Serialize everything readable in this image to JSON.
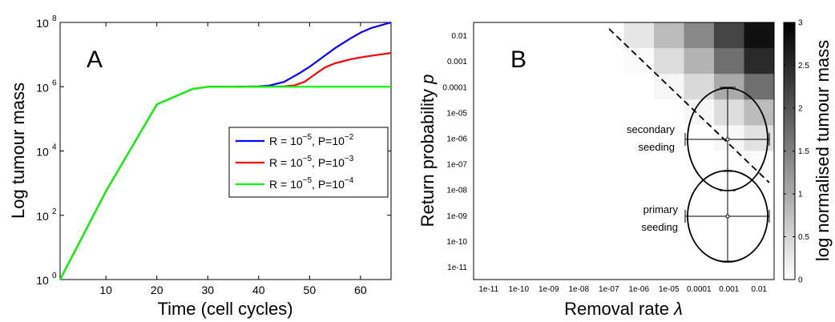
{
  "chart_data": [
    {
      "type": "line",
      "panel_label": "A",
      "xlabel": "Time (cell cycles)",
      "ylabel": "Log tumour mass",
      "xlim": [
        1,
        66
      ],
      "ylim_log10": [
        0,
        8
      ],
      "y_scale": "log",
      "x_ticks": [
        "10",
        "20",
        "30",
        "40",
        "50",
        "60"
      ],
      "y_ticks": [
        {
          "base": "10",
          "exp": "0"
        },
        {
          "base": "10",
          "exp": "2"
        },
        {
          "base": "10",
          "exp": "4"
        },
        {
          "base": "10",
          "exp": "6"
        },
        {
          "base": "10",
          "exp": "8"
        }
      ],
      "legend_position": "center-right",
      "series": [
        {
          "name": "R = 10^-5, P=10^-2",
          "label": {
            "a": "R = 10",
            "ae": "−5",
            "b": ", P=10",
            "be": "−2"
          },
          "color": "#0000ff",
          "x": [
            1,
            10,
            20,
            27,
            30,
            35,
            40,
            42,
            45,
            48,
            50,
            52,
            55,
            58,
            60,
            62,
            66
          ],
          "y_log10": [
            0,
            2.75,
            5.45,
            5.93,
            6.0,
            6.0,
            6.01,
            6.03,
            6.15,
            6.42,
            6.62,
            6.85,
            7.2,
            7.5,
            7.68,
            7.82,
            8.0
          ]
        },
        {
          "name": "R = 10^-5, P=10^-3",
          "label": {
            "a": "R = 10",
            "ae": "−5",
            "b": ", P=10",
            "be": "−3"
          },
          "color": "#ff0000",
          "x": [
            1,
            10,
            20,
            27,
            30,
            35,
            40,
            45,
            47,
            49,
            51,
            53,
            55,
            58,
            60,
            62,
            66
          ],
          "y_log10": [
            0,
            2.75,
            5.45,
            5.93,
            6.0,
            6.0,
            6.0,
            6.01,
            6.04,
            6.15,
            6.38,
            6.6,
            6.73,
            6.85,
            6.91,
            6.96,
            7.05
          ]
        },
        {
          "name": "R = 10^-5, P=10^-4",
          "label": {
            "a": "R = 10",
            "ae": "−5",
            "b": ", P=10",
            "be": "−4"
          },
          "color": "#00ff00",
          "x": [
            1,
            10,
            20,
            27,
            30,
            35,
            66
          ],
          "y_log10": [
            0,
            2.75,
            5.45,
            5.93,
            6.0,
            6.0,
            6.0
          ]
        }
      ]
    },
    {
      "type": "heatmap",
      "panel_label": "B",
      "xlabel_text": "Removal rate ",
      "xlabel_symbol": "λ",
      "ylabel_text": "Return probability ",
      "ylabel_symbol": "p",
      "x_ticks": [
        "1e-11",
        "1e-10",
        "1e-09",
        "1e-08",
        "1e-07",
        "1e-06",
        "1e-05",
        "0.0001",
        "0.001",
        "0.01"
      ],
      "y_ticks": [
        "0.01",
        "0.001",
        "0.0001",
        "1e-05",
        "1e-06",
        "1e-07",
        "1e-08",
        "1e-09",
        "1e-10",
        "1e-11"
      ],
      "colorbar": {
        "label": "log normalised tumour mass",
        "min": 0,
        "max": 3,
        "ticks": [
          "0",
          "0.5",
          "1",
          "1.5",
          "2",
          "2.5",
          "3"
        ],
        "colormap": "white-to-black"
      },
      "values": [
        [
          0,
          0,
          0,
          0,
          0,
          0.3,
          0.8,
          1.4,
          2.2,
          2.8
        ],
        [
          0,
          0,
          0,
          0,
          0,
          0.05,
          0.4,
          0.9,
          1.7,
          2.5
        ],
        [
          0,
          0,
          0,
          0,
          0,
          0,
          0.1,
          0.45,
          1.0,
          1.7
        ],
        [
          0,
          0,
          0,
          0,
          0,
          0,
          0,
          0.1,
          0.4,
          0.8
        ],
        [
          0,
          0,
          0,
          0,
          0,
          0,
          0,
          0,
          0.1,
          0.35
        ],
        [
          0,
          0,
          0,
          0,
          0,
          0,
          0,
          0,
          0,
          0.05
        ],
        [
          0,
          0,
          0,
          0,
          0,
          0,
          0,
          0,
          0,
          0
        ],
        [
          0,
          0,
          0,
          0,
          0,
          0,
          0,
          0,
          0,
          0
        ],
        [
          0,
          0,
          0,
          0,
          0,
          0,
          0,
          0,
          0,
          0
        ],
        [
          0,
          0,
          0,
          0,
          0,
          0,
          0,
          0,
          0,
          0
        ]
      ],
      "threshold_line": {
        "style": "dashed",
        "from": [
          "1e-07",
          "0.01"
        ],
        "to": [
          "0.01",
          "1e-08"
        ]
      },
      "annotations": [
        {
          "lines": [
            "secondary",
            "seeding"
          ],
          "center": [
            "0.001",
            "1e-06"
          ]
        },
        {
          "lines": [
            "primary",
            "seeding"
          ],
          "center": [
            "0.001",
            "1e-09"
          ]
        }
      ]
    }
  ]
}
